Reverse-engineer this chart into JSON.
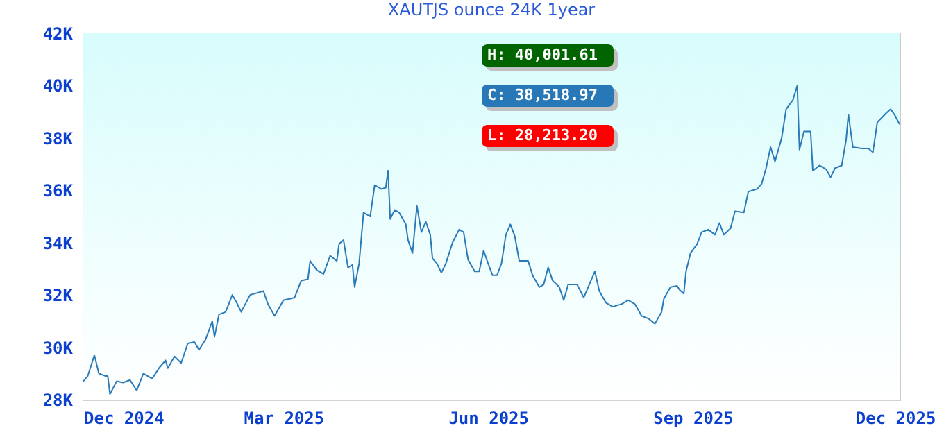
{
  "chart_data": {
    "type": "line",
    "title": "XAUTJS ounce 24K 1year",
    "x": [
      "2024-12-01",
      "2024-12-03",
      "2024-12-06",
      "2024-12-08",
      "2024-12-11",
      "2024-12-12",
      "2024-12-13",
      "2024-12-16",
      "2024-12-19",
      "2024-12-22",
      "2024-12-25",
      "2024-12-28",
      "2025-01-01",
      "2025-01-04",
      "2025-01-07",
      "2025-01-08",
      "2025-01-11",
      "2025-01-14",
      "2025-01-17",
      "2025-01-20",
      "2025-01-22",
      "2025-01-25",
      "2025-01-28",
      "2025-01-29",
      "2025-01-31",
      "2025-02-03",
      "2025-02-06",
      "2025-02-08",
      "2025-02-10",
      "2025-02-14",
      "2025-02-20",
      "2025-02-22",
      "2025-02-25",
      "2025-03-01",
      "2025-03-06",
      "2025-03-09",
      "2025-03-12",
      "2025-03-13",
      "2025-03-16",
      "2025-03-19",
      "2025-03-22",
      "2025-03-25",
      "2025-03-26",
      "2025-03-28",
      "2025-03-30",
      "2025-04-01",
      "2025-04-02",
      "2025-04-04",
      "2025-04-06",
      "2025-04-09",
      "2025-04-11",
      "2025-04-14",
      "2025-04-16",
      "2025-04-17",
      "2025-04-18",
      "2025-04-20",
      "2025-04-22",
      "2025-04-25",
      "2025-04-26",
      "2025-04-28",
      "2025-04-30",
      "2025-05-02",
      "2025-05-04",
      "2025-05-06",
      "2025-05-07",
      "2025-05-09",
      "2025-05-11",
      "2025-05-13",
      "2025-05-16",
      "2025-05-19",
      "2025-05-21",
      "2025-05-23",
      "2025-05-26",
      "2025-05-28",
      "2025-05-30",
      "2025-06-01",
      "2025-06-03",
      "2025-06-05",
      "2025-06-07",
      "2025-06-09",
      "2025-06-11",
      "2025-06-13",
      "2025-06-15",
      "2025-06-19",
      "2025-06-21",
      "2025-06-24",
      "2025-06-26",
      "2025-06-28",
      "2025-06-30",
      "2025-07-03",
      "2025-07-05",
      "2025-07-07",
      "2025-07-11",
      "2025-07-14",
      "2025-07-16",
      "2025-07-19",
      "2025-07-21",
      "2025-07-24",
      "2025-07-27",
      "2025-07-31",
      "2025-08-03",
      "2025-08-06",
      "2025-08-09",
      "2025-08-12",
      "2025-08-15",
      "2025-08-18",
      "2025-08-19",
      "2025-08-22",
      "2025-08-25",
      "2025-08-26",
      "2025-08-28",
      "2025-08-29",
      "2025-08-31",
      "2025-09-03",
      "2025-09-05",
      "2025-09-08",
      "2025-09-11",
      "2025-09-13",
      "2025-09-15",
      "2025-09-18",
      "2025-09-20",
      "2025-09-24",
      "2025-09-26",
      "2025-09-30",
      "2025-10-02",
      "2025-10-04",
      "2025-10-06",
      "2025-10-08",
      "2025-10-11",
      "2025-10-13",
      "2025-10-16",
      "2025-10-18",
      "2025-10-19",
      "2025-10-21",
      "2025-10-24",
      "2025-10-25",
      "2025-10-28",
      "2025-10-31",
      "2025-11-02",
      "2025-11-04",
      "2025-11-07",
      "2025-11-09",
      "2025-11-10",
      "2025-11-12",
      "2025-11-16",
      "2025-11-19",
      "2025-11-21",
      "2025-11-23",
      "2025-11-27",
      "2025-11-29",
      "2025-12-01",
      "2025-12-03"
    ],
    "series": [
      {
        "color": "#2a7ab8",
        "values": [
          28700,
          28900,
          29700,
          29000,
          28900,
          28900,
          28210,
          28700,
          28650,
          28750,
          28350,
          29000,
          28800,
          29200,
          29500,
          29200,
          29650,
          29400,
          30150,
          30200,
          29900,
          30300,
          31000,
          30400,
          31250,
          31350,
          32000,
          31700,
          31350,
          32000,
          32150,
          31650,
          31200,
          31800,
          31900,
          32550,
          32600,
          33300,
          32950,
          32800,
          33500,
          33300,
          33950,
          34100,
          33050,
          33150,
          32300,
          33200,
          35150,
          35000,
          36200,
          36050,
          36100,
          36750,
          34900,
          35250,
          35150,
          34700,
          34100,
          33600,
          35400,
          34400,
          34800,
          34300,
          33400,
          33200,
          32850,
          33200,
          34000,
          34500,
          34400,
          33350,
          32900,
          32900,
          33700,
          33200,
          32750,
          32750,
          33200,
          34300,
          34700,
          34250,
          33300,
          33300,
          32750,
          32300,
          32400,
          33050,
          32550,
          32300,
          31800,
          32400,
          32400,
          31900,
          32300,
          32900,
          32150,
          31700,
          31550,
          31650,
          31800,
          31650,
          31200,
          31100,
          30900,
          31350,
          31850,
          32300,
          32350,
          32200,
          32050,
          32900,
          33600,
          33950,
          34400,
          34500,
          34300,
          34750,
          34300,
          34550,
          35200,
          35150,
          35950,
          36050,
          36250,
          36850,
          37650,
          37100,
          38000,
          39100,
          39450,
          40000,
          37550,
          38250,
          38250,
          36750,
          36950,
          36800,
          36500,
          36850,
          36950,
          37950,
          38900,
          37650,
          37600,
          37600,
          37450,
          38600,
          38950,
          39100,
          38850,
          38520
        ]
      }
    ],
    "xlim": [
      "2024-12-01",
      "2025-12-03"
    ],
    "xticks": [
      {
        "value": "2024-12-01",
        "label": "Dec 2024"
      },
      {
        "value": "2025-03-01",
        "label": "Mar 2025"
      },
      {
        "value": "2025-06-01",
        "label": "Jun 2025"
      },
      {
        "value": "2025-09-01",
        "label": "Sep 2025"
      },
      {
        "value": "2025-12-01",
        "label": "Dec 2025"
      }
    ],
    "ylim": [
      28000,
      42000
    ],
    "yticks": [
      {
        "value": 28000,
        "label": "28K"
      },
      {
        "value": 30000,
        "label": "30K"
      },
      {
        "value": 32000,
        "label": "32K"
      },
      {
        "value": 34000,
        "label": "34K"
      },
      {
        "value": 36000,
        "label": "36K"
      },
      {
        "value": 38000,
        "label": "38K"
      },
      {
        "value": 40000,
        "label": "40K"
      },
      {
        "value": 42000,
        "label": "42K"
      }
    ],
    "grid": "y",
    "annotations": [
      "H: 40,001.61",
      "C: 38,518.97",
      "L: 28,213.20"
    ]
  }
}
